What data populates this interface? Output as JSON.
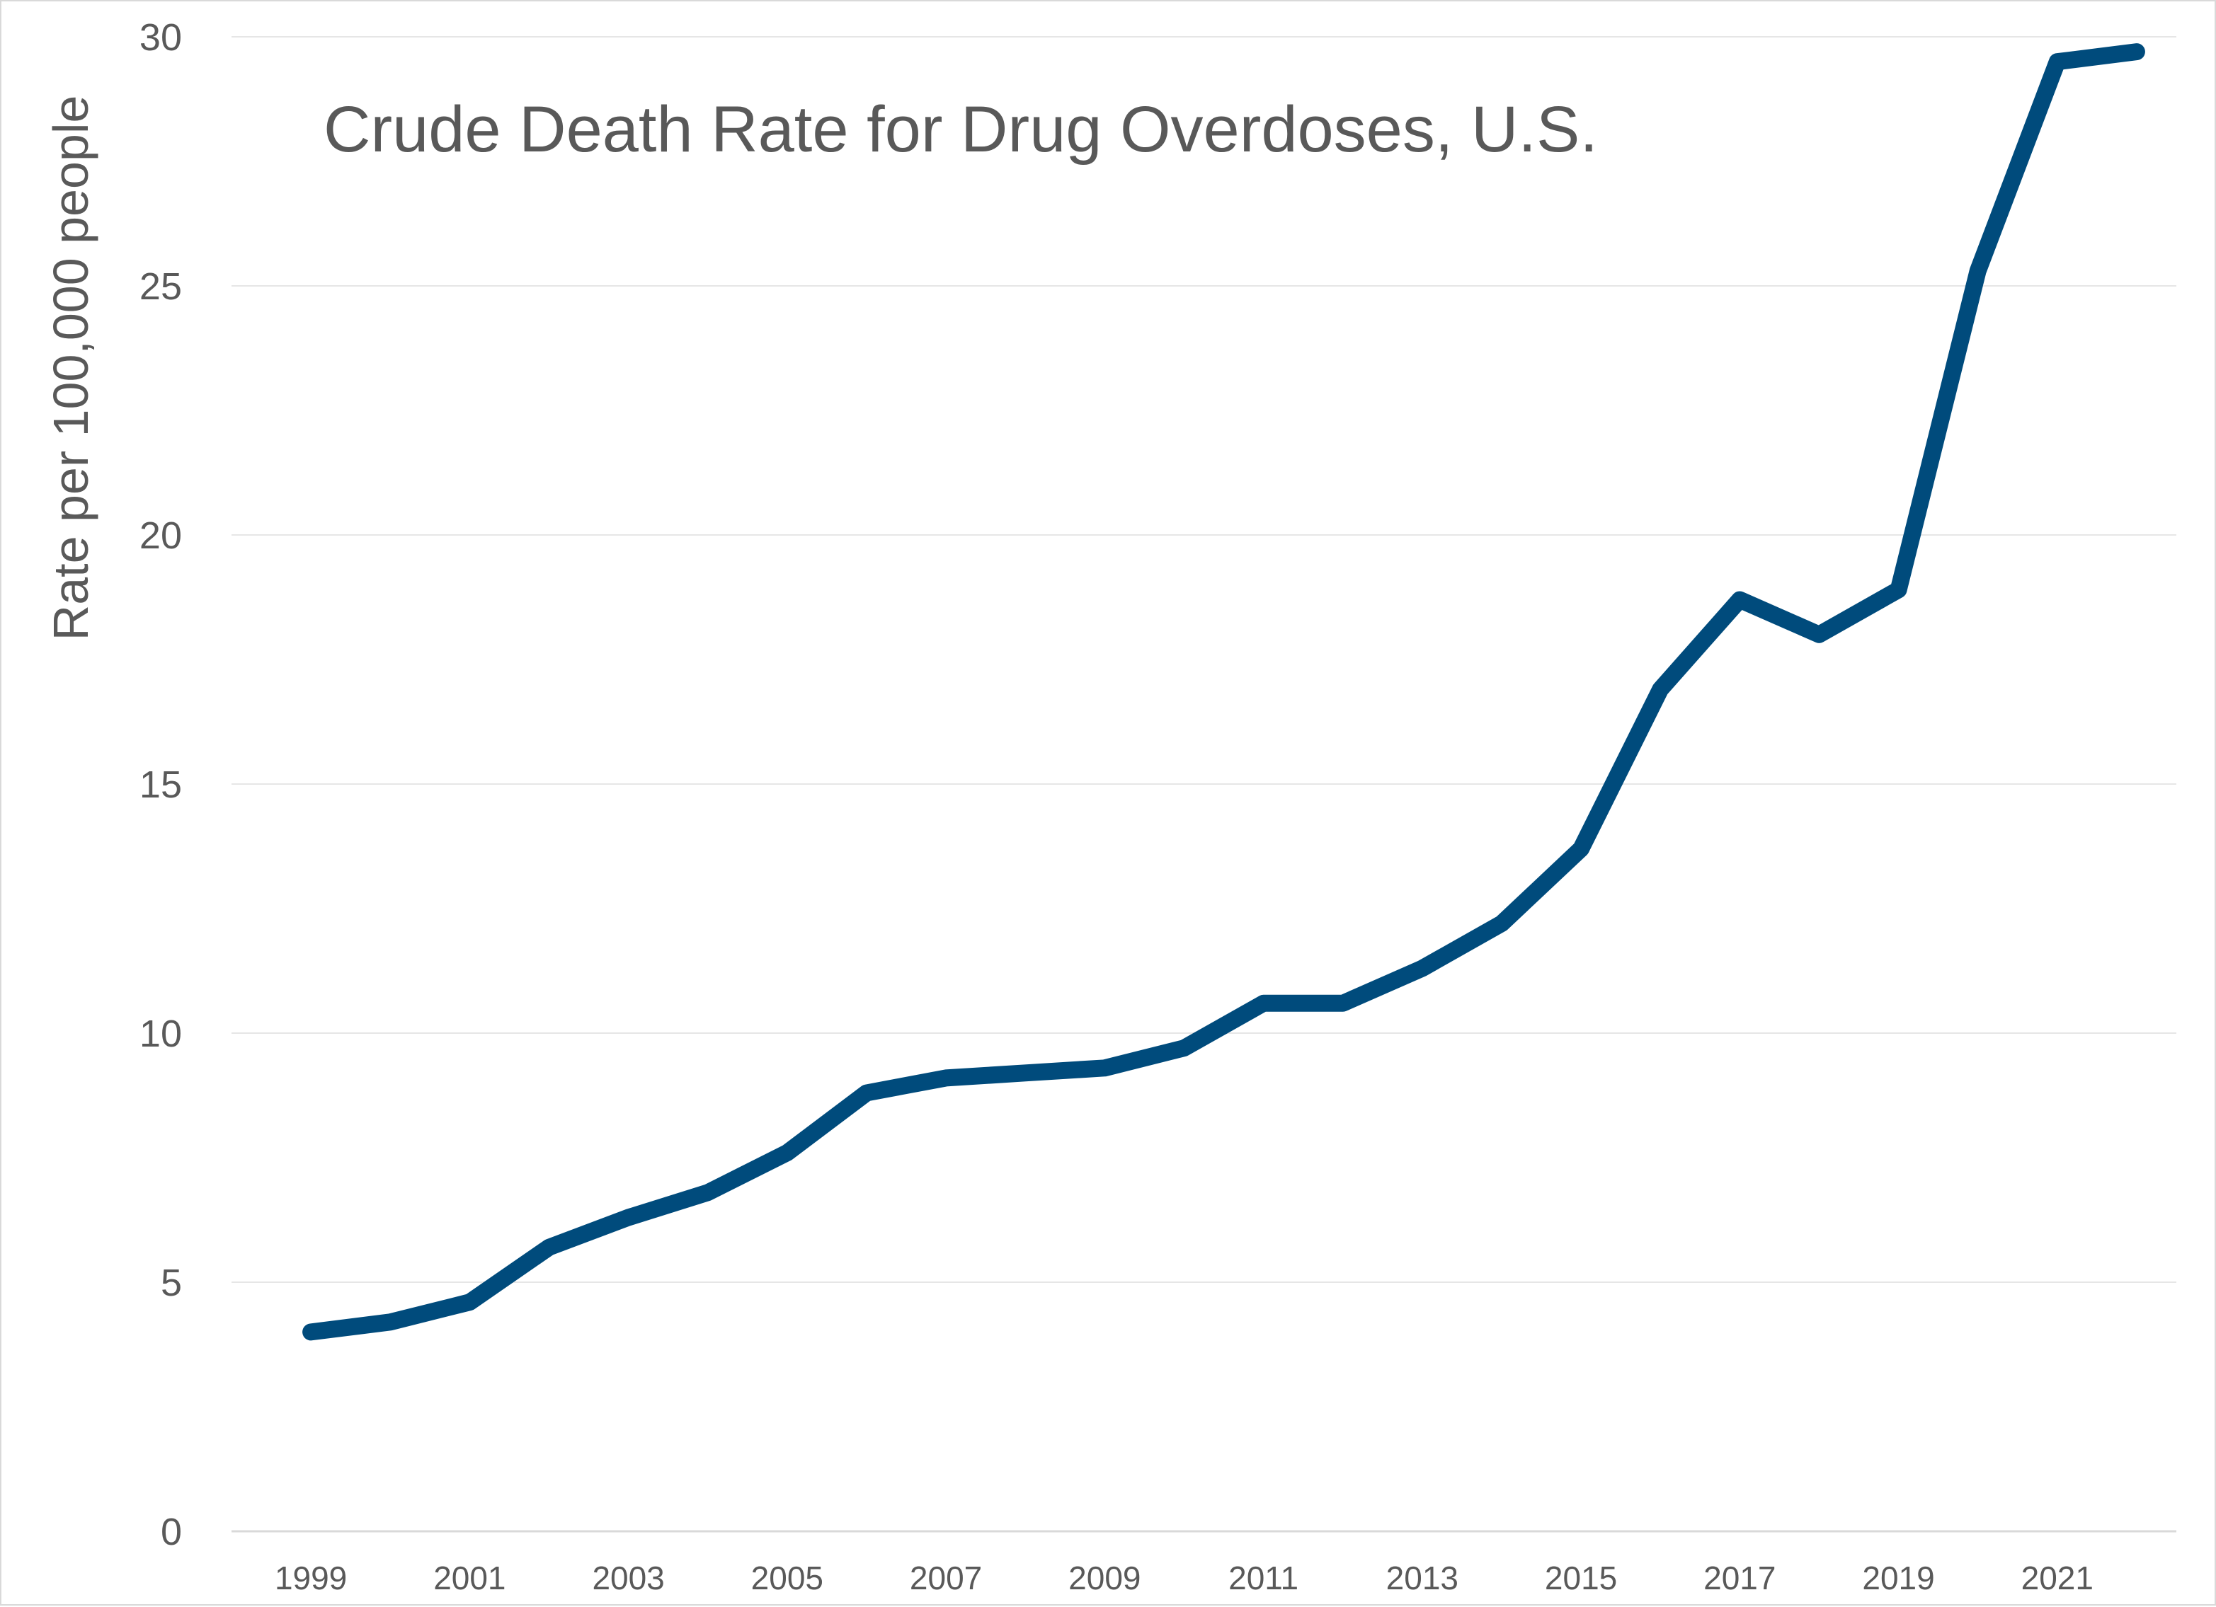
{
  "chart_data": {
    "type": "line",
    "title": "Crude Death Rate for Drug Overdoses, U.S.",
    "xlabel": "",
    "ylabel": "Rate per 100,000 people",
    "x": [
      1999,
      2000,
      2001,
      2002,
      2003,
      2004,
      2005,
      2006,
      2007,
      2008,
      2009,
      2010,
      2011,
      2012,
      2013,
      2014,
      2015,
      2016,
      2017,
      2018,
      2019,
      2020,
      2021,
      2022
    ],
    "x_tick_labels": [
      "1999",
      "2001",
      "2003",
      "2005",
      "2007",
      "2009",
      "2011",
      "2013",
      "2015",
      "2017",
      "2019",
      "2021"
    ],
    "y_tick_labels": [
      "0",
      "5",
      "10",
      "15",
      "20",
      "25",
      "30"
    ],
    "ylim": [
      0,
      30
    ],
    "grid": true,
    "legend": "none",
    "series": [
      {
        "color": "#004b7c",
        "values": [
          4.0,
          4.2,
          4.6,
          5.7,
          6.3,
          6.8,
          7.6,
          8.8,
          9.1,
          9.2,
          9.3,
          9.7,
          10.6,
          10.6,
          11.3,
          12.2,
          13.7,
          16.9,
          18.7,
          18.0,
          18.9,
          25.3,
          29.5,
          29.7
        ]
      }
    ],
    "colors": {
      "line": "#004b7c",
      "grid": "#e6e6e6",
      "axis": "#d9d9d9",
      "text": "#595959"
    }
  }
}
